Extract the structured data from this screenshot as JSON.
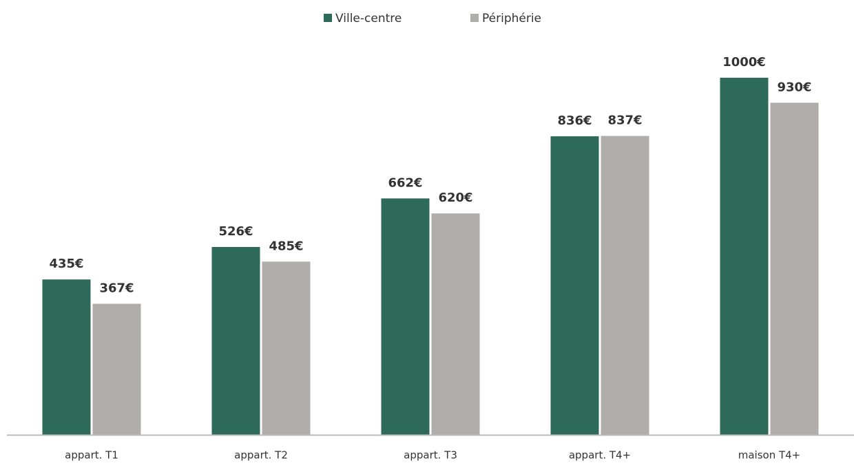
{
  "chart_data": {
    "type": "bar",
    "categories": [
      "appart. T1",
      "appart. T2",
      "appart. T3",
      "appart. T4+",
      "maison T4+"
    ],
    "series": [
      {
        "name": "Ville-centre",
        "color": "#2d6a5a",
        "values": [
          435,
          526,
          662,
          836,
          1000
        ],
        "value_labels": [
          "435€",
          "526€",
          "662€",
          "836€",
          "1000€"
        ]
      },
      {
        "name": "Périphérie",
        "color": "#b0adab",
        "values": [
          367,
          485,
          620,
          837,
          930
        ],
        "value_labels": [
          "367€",
          "485€",
          "620€",
          "837€",
          "930€"
        ]
      }
    ],
    "legend": "top"
  }
}
